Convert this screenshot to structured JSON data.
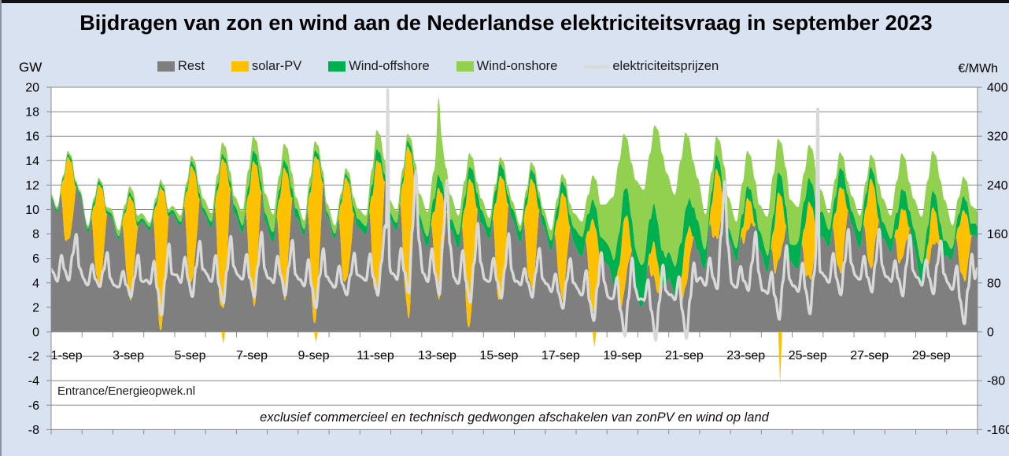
{
  "title": "Bijdragen van zon en wind aan de Nederlandse elektriciteitsvraag in september 2023",
  "units": {
    "left": "GW",
    "right": "€/MWh"
  },
  "legend": [
    {
      "label": "Rest",
      "color": "#7f7f7f",
      "type": "area"
    },
    {
      "label": "solar-PV",
      "color": "#ffc000",
      "type": "area"
    },
    {
      "label": "Wind-offshore",
      "color": "#00b050",
      "type": "area"
    },
    {
      "label": "Wind-onshore",
      "color": "#92d050",
      "type": "area"
    },
    {
      "label": "elektriciteitsprijzen",
      "color": "#d9d9d9",
      "type": "line"
    }
  ],
  "source_label": "Entrance/Energieopwek.nl",
  "footnote": "exclusief commercieel en technisch gedwongen afschakelen van zonPV en wind op land",
  "chart_data": {
    "type": "area",
    "stacked": true,
    "stack_order": [
      "Rest",
      "solar-PV",
      "Wind-offshore",
      "Wind-onshore"
    ],
    "line_series": "elektriciteitsprijzen",
    "colors": {
      "rest": "#7f7f7f",
      "solar": "#ffc000",
      "wind_offshore": "#00b050",
      "wind_onshore": "#92d050",
      "price_line": "#d9d9d9",
      "grid": "#8a8a8a",
      "plot_bg": "#ffffff"
    },
    "y_left": {
      "label": "GW",
      "min": -8,
      "max": 20,
      "step": 2
    },
    "y_right": {
      "label": "€/MWh",
      "min": -160,
      "max": 400,
      "step": 80
    },
    "x_labels": [
      "1-sep",
      "3-sep",
      "5-sep",
      "7-sep",
      "9-sep",
      "11-sep",
      "13-sep",
      "15-sep",
      "17-sep",
      "19-sep",
      "21-sep",
      "23-sep",
      "25-sep",
      "27-sep",
      "29-sep"
    ],
    "days": 30,
    "daily": [
      {
        "day": 1,
        "night_gw": 10.2,
        "midday_peak_gw": 14.8,
        "rest_midday_min_gw": 7.2,
        "wind_offshore_gw": 0.25,
        "wind_onshore_gw": 0.2,
        "price_night": 95,
        "price_morning": 125,
        "price_midday": 85,
        "price_evening": 160
      },
      {
        "day": 2,
        "night_gw": 8.7,
        "midday_peak_gw": 12.6,
        "rest_midday_min_gw": 3.6,
        "wind_offshore_gw": 0.3,
        "wind_onshore_gw": 0.3,
        "price_night": 88,
        "price_morning": 110,
        "price_midday": 70,
        "price_evening": 130
      },
      {
        "day": 3,
        "night_gw": 8.3,
        "midday_peak_gw": 11.9,
        "rest_midday_min_gw": 3.0,
        "wind_offshore_gw": 0.3,
        "wind_onshore_gw": 0.45,
        "price_night": 80,
        "price_morning": 100,
        "price_midday": 55,
        "price_evening": 125
      },
      {
        "day": 4,
        "night_gw": 8.9,
        "midday_peak_gw": 12.4,
        "rest_midday_min_gw": 0.6,
        "wind_offshore_gw": 0.3,
        "wind_onshore_gw": 0.35,
        "price_night": 85,
        "price_morning": 115,
        "price_midday": 30,
        "price_evening": 145
      },
      {
        "day": 5,
        "night_gw": 9.5,
        "midday_peak_gw": 14.4,
        "rest_midday_min_gw": 4.0,
        "wind_offshore_gw": 0.35,
        "wind_onshore_gw": 0.45,
        "price_night": 90,
        "price_morning": 120,
        "price_midday": 60,
        "price_evening": 150
      },
      {
        "day": 6,
        "night_gw": 9.7,
        "midday_peak_gw": 15.5,
        "rest_midday_min_gw": 1.2,
        "wind_offshore_gw": 0.5,
        "wind_onshore_gw": 0.9,
        "price_night": 92,
        "price_morning": 125,
        "price_midday": 45,
        "price_evening": 155
      },
      {
        "day": 7,
        "night_gw": 9.9,
        "midday_peak_gw": 16.0,
        "rest_midday_min_gw": 2.2,
        "wind_offshore_gw": 0.7,
        "wind_onshore_gw": 1.2,
        "price_night": 95,
        "price_morning": 130,
        "price_midday": 55,
        "price_evening": 160
      },
      {
        "day": 8,
        "night_gw": 9.6,
        "midday_peak_gw": 15.4,
        "rest_midday_min_gw": 3.2,
        "wind_offshore_gw": 0.8,
        "wind_onshore_gw": 1.4,
        "price_night": 90,
        "price_morning": 125,
        "price_midday": 60,
        "price_evening": 150
      },
      {
        "day": 9,
        "night_gw": 9.1,
        "midday_peak_gw": 15.6,
        "rest_midday_min_gw": 1.2,
        "wind_offshore_gw": 0.4,
        "wind_onshore_gw": 0.7,
        "price_night": 85,
        "price_morning": 115,
        "price_midday": 40,
        "price_evening": 140
      },
      {
        "day": 10,
        "night_gw": 8.7,
        "midday_peak_gw": 13.4,
        "rest_midday_min_gw": 3.9,
        "wind_offshore_gw": 0.4,
        "wind_onshore_gw": 0.5,
        "price_night": 80,
        "price_morning": 105,
        "price_midday": 60,
        "price_evening": 130
      },
      {
        "day": 11,
        "night_gw": 9.5,
        "midday_peak_gw": 16.5,
        "rest_midday_min_gw": 2.6,
        "wind_offshore_gw": 0.8,
        "wind_onshore_gw": 1.4,
        "price_night": 90,
        "price_morning": 130,
        "price_midday": 60,
        "price_evening": 170
      },
      {
        "day": 12,
        "night_gw": 9.9,
        "midday_peak_gw": 16.2,
        "rest_midday_min_gw": 1.6,
        "wind_offshore_gw": 0.5,
        "wind_onshore_gw": 0.6,
        "price_night": 95,
        "price_morning": 140,
        "price_midday": 65,
        "price_evening": 260
      },
      {
        "day": 13,
        "night_gw": 9.8,
        "midday_peak_gw": 15.8,
        "rest_midday_min_gw": 3.2,
        "wind_offshore_gw": 1.0,
        "wind_onshore_gw": 3.0,
        "price_night": 95,
        "price_morning": 135,
        "price_midday": 60,
        "price_evening": 250
      },
      {
        "day": 14,
        "night_gw": 9.5,
        "midday_peak_gw": 14.6,
        "rest_midday_min_gw": 0.6,
        "wind_offshore_gw": 1.0,
        "wind_onshore_gw": 1.0,
        "price_night": 90,
        "price_morning": 130,
        "price_midday": 45,
        "price_evening": 180
      },
      {
        "day": 15,
        "night_gw": 9.3,
        "midday_peak_gw": 14.3,
        "rest_midday_min_gw": 2.1,
        "wind_offshore_gw": 1.0,
        "wind_onshore_gw": 0.7,
        "price_night": 88,
        "price_morning": 120,
        "price_midday": 55,
        "price_evening": 160
      },
      {
        "day": 16,
        "night_gw": 8.7,
        "midday_peak_gw": 13.9,
        "rest_midday_min_gw": 3.4,
        "wind_offshore_gw": 0.7,
        "wind_onshore_gw": 0.5,
        "price_night": 82,
        "price_morning": 105,
        "price_midday": 60,
        "price_evening": 135
      },
      {
        "day": 17,
        "night_gw": 8.3,
        "midday_peak_gw": 12.9,
        "rest_midday_min_gw": 3.0,
        "wind_offshore_gw": 1.0,
        "wind_onshore_gw": 0.8,
        "price_night": 75,
        "price_morning": 95,
        "price_midday": 40,
        "price_evening": 120
      },
      {
        "day": 18,
        "night_gw": 9.0,
        "midday_peak_gw": 12.8,
        "rest_midday_min_gw": 2.1,
        "wind_offshore_gw": 1.5,
        "wind_onshore_gw": 1.6,
        "price_night": 70,
        "price_morning": 100,
        "price_midday": 15,
        "price_evening": 130
      },
      {
        "day": 19,
        "night_gw": 11.0,
        "midday_peak_gw": 16.2,
        "rest_midday_min_gw": 3.0,
        "wind_offshore_gw": 2.6,
        "wind_onshore_gw": 5.4,
        "price_night": 60,
        "price_morning": 90,
        "price_midday": -10,
        "price_evening": 120
      },
      {
        "day": 20,
        "night_gw": 11.6,
        "midday_peak_gw": 16.9,
        "rest_midday_min_gw": 4.2,
        "wind_offshore_gw": 3.0,
        "wind_onshore_gw": 6.4,
        "price_night": 55,
        "price_morning": 85,
        "price_midday": -12,
        "price_evening": 110
      },
      {
        "day": 21,
        "night_gw": 11.2,
        "midday_peak_gw": 16.3,
        "rest_midday_min_gw": 3.6,
        "wind_offshore_gw": 2.6,
        "wind_onshore_gw": 5.8,
        "price_night": 58,
        "price_morning": 88,
        "price_midday": -8,
        "price_evening": 115
      },
      {
        "day": 22,
        "night_gw": 9.6,
        "midday_peak_gw": 16.0,
        "rest_midday_min_gw": 8.0,
        "wind_offshore_gw": 1.1,
        "wind_onshore_gw": 1.8,
        "price_night": 85,
        "price_morning": 120,
        "price_midday": 70,
        "price_evening": 245
      },
      {
        "day": 23,
        "night_gw": 9.0,
        "midday_peak_gw": 14.8,
        "rest_midday_min_gw": 8.4,
        "wind_offshore_gw": 1.0,
        "wind_onshore_gw": 2.4,
        "price_night": 80,
        "price_morning": 110,
        "price_midday": 65,
        "price_evening": 160
      },
      {
        "day": 24,
        "night_gw": 9.4,
        "midday_peak_gw": 15.8,
        "rest_midday_min_gw": 5.6,
        "wind_offshore_gw": 1.6,
        "wind_onshore_gw": 3.4,
        "price_night": 70,
        "price_morning": 100,
        "price_midday": 20,
        "price_evening": 140
      },
      {
        "day": 25,
        "night_gw": 10.2,
        "midday_peak_gw": 15.3,
        "rest_midday_min_gw": 4.2,
        "wind_offshore_gw": 2.0,
        "wind_onshore_gw": 2.4,
        "price_night": 75,
        "price_morning": 110,
        "price_midday": 30,
        "price_evening": 150
      },
      {
        "day": 26,
        "night_gw": 9.7,
        "midday_peak_gw": 14.7,
        "rest_midday_min_gw": 5.0,
        "wind_offshore_gw": 1.5,
        "wind_onshore_gw": 1.4,
        "price_night": 90,
        "price_morning": 125,
        "price_midday": 60,
        "price_evening": 170
      },
      {
        "day": 27,
        "night_gw": 9.5,
        "midday_peak_gw": 14.5,
        "rest_midday_min_gw": 5.6,
        "wind_offshore_gw": 1.0,
        "wind_onshore_gw": 1.0,
        "price_night": 92,
        "price_morning": 125,
        "price_midday": 65,
        "price_evening": 165
      },
      {
        "day": 28,
        "night_gw": 9.5,
        "midday_peak_gw": 14.6,
        "rest_midday_min_gw": 6.0,
        "wind_offshore_gw": 1.5,
        "wind_onshore_gw": 2.8,
        "price_night": 90,
        "price_morning": 120,
        "price_midday": 60,
        "price_evening": 155
      },
      {
        "day": 29,
        "night_gw": 9.4,
        "midday_peak_gw": 14.8,
        "rest_midday_min_gw": 7.0,
        "wind_offshore_gw": 1.5,
        "wind_onshore_gw": 3.4,
        "price_night": 88,
        "price_morning": 118,
        "price_midday": 62,
        "price_evening": 150
      },
      {
        "day": 30,
        "night_gw": 8.7,
        "midday_peak_gw": 12.7,
        "rest_midday_min_gw": 4.2,
        "wind_offshore_gw": 1.0,
        "wind_onshore_gw": 1.6,
        "price_night": 80,
        "price_morning": 105,
        "price_midday": 10,
        "price_evening": 130
      }
    ],
    "events": {
      "price_spikes_eur": [
        {
          "day": 11,
          "hour": 21.6,
          "value": 396
        },
        {
          "day": 25,
          "hour": 19.8,
          "value": 383
        }
      ],
      "negative_solar_dips_gw": [
        {
          "day": 6,
          "hour": 13.8,
          "value": -1.0
        },
        {
          "day": 9,
          "hour": 13.8,
          "value": -0.9
        },
        {
          "day": 18,
          "hour": 14.2,
          "value": -1.3
        },
        {
          "day": 19,
          "hour": 13.6,
          "value": -0.5
        },
        {
          "day": 20,
          "hour": 14.0,
          "value": -0.6
        },
        {
          "day": 24,
          "hour": 14.6,
          "value": -4.4
        }
      ],
      "wind_onshore_burst": {
        "day": 13,
        "hour": 13.2,
        "peak_total_gw": 19.2
      }
    }
  }
}
